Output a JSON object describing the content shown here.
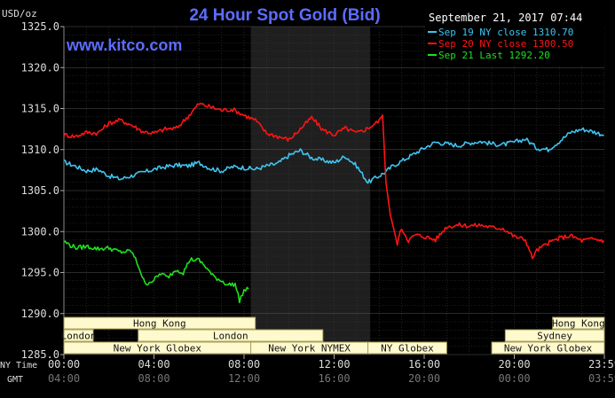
{
  "chart_data": {
    "type": "line",
    "title": "24 Hour Spot Gold (Bid)",
    "watermark": "www.kitco.com",
    "date_stamp": "September 21, 2017 07:44",
    "ylabel": "USD/oz",
    "ylim": [
      1285,
      1325
    ],
    "y_ticks": [
      "1325.0",
      "1320.0",
      "1315.0",
      "1310.0",
      "1305.0",
      "1300.0",
      "1295.0",
      "1290.0",
      "1285.0"
    ],
    "xlim_hours": [
      0,
      24
    ],
    "x_ticks_ny": [
      "00:00",
      "04:00",
      "08:00",
      "12:00",
      "16:00",
      "20:00",
      "23:59"
    ],
    "x_ticks_gmt": [
      "04:00",
      "08:00",
      "12:00",
      "16:00",
      "20:00",
      "00:00",
      "03:59"
    ],
    "x_axis_label_ny": "NY Time",
    "x_axis_label_gmt": "GMT",
    "shaded_region_hours": [
      8.3,
      13.6
    ],
    "grid": true,
    "legend_position": "top-right",
    "colors": {
      "background": "#000000",
      "grid": "#3a3a3a",
      "shade": "#1f1f1f",
      "title": "#5b6dff",
      "watermark": "#5b6dff",
      "text": "#cccccc",
      "market_fill": "#fffacd",
      "market_border": "#a8a060"
    },
    "series": [
      {
        "name": "Sep 19 NY close 1310.70",
        "color": "#3fc4f0",
        "x": [
          0,
          0.5,
          1,
          1.5,
          2,
          2.5,
          3,
          3.5,
          4,
          4.5,
          5,
          5.5,
          6,
          6.5,
          7,
          7.5,
          8,
          8.5,
          9,
          9.5,
          10,
          10.5,
          11,
          11.5,
          12,
          12.5,
          13,
          13.5,
          14,
          14.3,
          14.6,
          15,
          15.5,
          16,
          16.5,
          17,
          17.5,
          18,
          18.5,
          19,
          19.5,
          20,
          20.5,
          21,
          21.5,
          22,
          22.5,
          23,
          23.5,
          23.98
        ],
        "y": [
          1308.5,
          1308.0,
          1307.4,
          1307.6,
          1306.8,
          1306.4,
          1306.8,
          1307.2,
          1307.6,
          1307.9,
          1308.1,
          1308.0,
          1308.4,
          1307.7,
          1307.4,
          1307.9,
          1307.8,
          1307.6,
          1308.0,
          1308.3,
          1309.3,
          1309.9,
          1309.0,
          1308.7,
          1308.4,
          1309.2,
          1308.0,
          1306.0,
          1306.8,
          1307.3,
          1308.0,
          1308.6,
          1309.4,
          1310.2,
          1310.9,
          1310.7,
          1310.5,
          1310.8,
          1311.0,
          1310.7,
          1310.6,
          1310.9,
          1311.3,
          1310.2,
          1310.0,
          1311.0,
          1312.1,
          1312.5,
          1312.2,
          1311.8
        ]
      },
      {
        "name": "Sep 20 NY close 1300.50",
        "color": "#ff1414",
        "x": [
          0,
          0.5,
          1,
          1.5,
          2,
          2.5,
          3,
          3.5,
          4,
          4.5,
          5,
          5.5,
          6,
          6.5,
          7,
          7.5,
          8,
          8.5,
          9,
          9.5,
          10,
          10.5,
          11,
          11.5,
          12,
          12.5,
          13,
          13.5,
          14,
          14.15,
          14.3,
          14.5,
          14.8,
          15,
          15.3,
          15.6,
          16,
          16.5,
          17,
          17.5,
          18,
          18.5,
          19,
          19.5,
          20,
          20.5,
          20.8,
          21,
          21.5,
          22,
          22.5,
          23,
          23.5,
          23.98
        ],
        "y": [
          1311.8,
          1311.6,
          1312.1,
          1312.0,
          1313.2,
          1313.6,
          1313.0,
          1312.2,
          1312.0,
          1312.5,
          1312.6,
          1314.0,
          1315.6,
          1315.2,
          1314.8,
          1314.9,
          1314.2,
          1313.6,
          1312.0,
          1311.6,
          1311.2,
          1312.5,
          1313.9,
          1312.4,
          1311.8,
          1312.6,
          1312.0,
          1312.6,
          1313.5,
          1314.2,
          1306.0,
          1302.0,
          1298.6,
          1300.4,
          1298.9,
          1299.6,
          1299.4,
          1299.0,
          1300.6,
          1300.8,
          1300.7,
          1300.8,
          1300.5,
          1300.4,
          1299.4,
          1299.0,
          1296.8,
          1297.7,
          1298.6,
          1299.2,
          1299.5,
          1298.9,
          1299.1,
          1298.9
        ]
      },
      {
        "name": "Sep 21 Last 1292.20",
        "color": "#1ee11e",
        "x": [
          0,
          0.3,
          0.6,
          1,
          1.5,
          2,
          2.5,
          3,
          3.3,
          3.6,
          4,
          4.3,
          4.6,
          5,
          5.3,
          5.6,
          6,
          6.3,
          6.6,
          7,
          7.3,
          7.6,
          7.8,
          8.0,
          8.2
        ],
        "y": [
          1298.8,
          1298.3,
          1298.0,
          1298.2,
          1297.9,
          1298.0,
          1297.5,
          1297.6,
          1295.9,
          1293.6,
          1294.1,
          1294.9,
          1294.4,
          1295.4,
          1295.0,
          1296.6,
          1296.5,
          1295.7,
          1294.6,
          1294.0,
          1293.5,
          1293.6,
          1291.6,
          1292.8,
          1293.0
        ]
      }
    ],
    "markets": [
      {
        "name": "Hong Kong",
        "row": 0,
        "start": 0,
        "end": 8.5
      },
      {
        "name": "Hong Kong",
        "row": 0,
        "start": 21.7,
        "end": 24.0
      },
      {
        "name": "London",
        "row": 1,
        "start": 0,
        "end": 1.3
      },
      {
        "name": "London",
        "row": 1,
        "start": 3.3,
        "end": 11.5
      },
      {
        "name": "Sydney",
        "row": 1,
        "start": 19.6,
        "end": 24.0
      },
      {
        "name": "New York Globex",
        "row": 2,
        "start": 0,
        "end": 8.3
      },
      {
        "name": "New York NYMEX",
        "row": 2,
        "start": 8.3,
        "end": 13.5
      },
      {
        "name": "NY Globex",
        "row": 2,
        "start": 13.5,
        "end": 17.0
      },
      {
        "name": "New York Globex",
        "row": 2,
        "start": 19.0,
        "end": 24.0
      }
    ]
  }
}
